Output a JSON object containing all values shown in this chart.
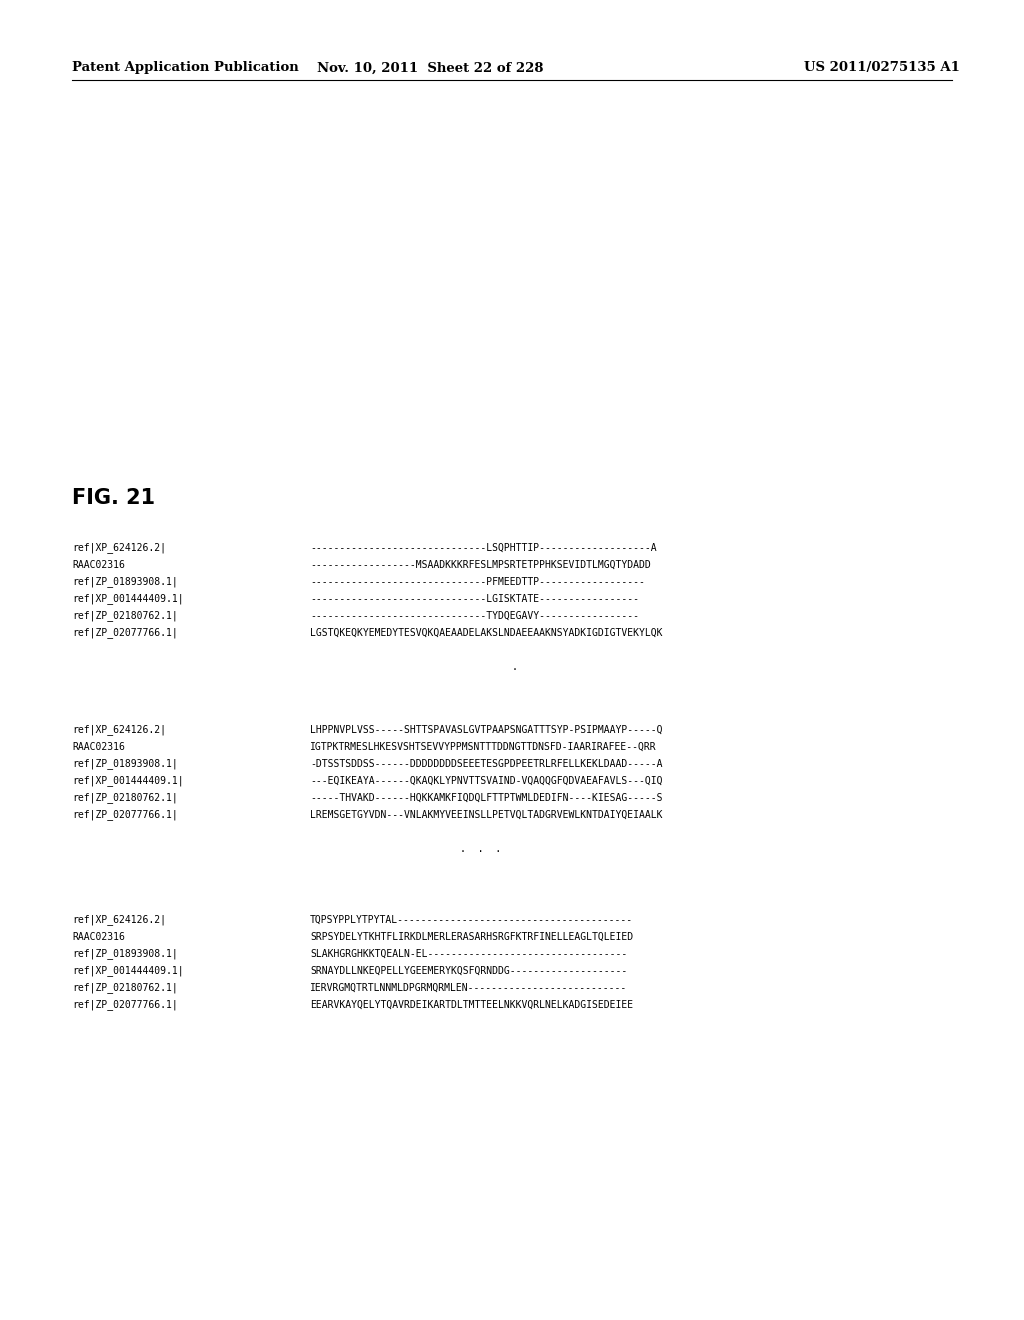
{
  "header_left": "Patent Application Publication",
  "header_middle": "Nov. 10, 2011  Sheet 22 of 228",
  "header_right": "US 2011/0275135 A1",
  "fig_label": "FIG. 21",
  "background_color": "#ffffff",
  "text_color": "#000000",
  "header_font_size": 9.5,
  "fig_label_font_size": 15,
  "mono_font_size": 7.0,
  "block1": [
    [
      "ref|XP_624126.2|",
      "------------------------------LSQPHTTIP-------------------A"
    ],
    [
      "RAAC02316",
      "------------------MSAADKKKRFESLMPSRTETPPHKSEVIDTLMGQTYDADD"
    ],
    [
      "ref|ZP_01893908.1|",
      "------------------------------PFMEEDTTP------------------"
    ],
    [
      "ref|XP_001444409.1|",
      "------------------------------LGISKTATE-----------------"
    ],
    [
      "ref|ZP_02180762.1|",
      "------------------------------TYDQEGAVY-----------------"
    ],
    [
      "ref|ZP_02077766.1|",
      "LGSTQKEQKYEMEDYTESVQKQAEAADELAKSLNDAEEAAKNSYADKIGDIGTVEKYLQK"
    ]
  ],
  "block1_dot": ".",
  "block2": [
    [
      "ref|XP_624126.2|",
      "LHPPNVPLVSS-----SHTTSPAVASLGVTPAAPSNGATTTSYP-PSIPMAAYP-----Q"
    ],
    [
      "RAAC02316",
      "IGTPKTRMESLHKESVSHTSEVVYPPMSNTTTDDNGTTDNSFD-IAARIRAFEE--QRR"
    ],
    [
      "ref|ZP_01893908.1|",
      "-DTSSTSDDSS------DDDDDDDDSEEETESGPDPEETRLRFELLKEKLDAAD-----A"
    ],
    [
      "ref|XP_001444409.1|",
      "---EQIKEAYA------QKAQKLYPNVTTSVAIND-VQAQQGFQDVAEAFAVLS---QIQ"
    ],
    [
      "ref|ZP_02180762.1|",
      "-----THVAKD------HQKKAMKFIQDQLFTTPTWMLDEDIFN----KIESAG-----S"
    ],
    [
      "ref|ZP_02077766.1|",
      "LREMSGETGYVDN---VNLAKMYVEEINSLLPETVQLTADGRVEWLKNTDAIYQEIAALK"
    ]
  ],
  "block2_dots": ".  .  .",
  "block3": [
    [
      "ref|XP_624126.2|",
      "TQPSYPPLYTPYTAL----------------------------------------"
    ],
    [
      "RAAC02316",
      "SRPSYDELYTKHTFLIRKDLMERLERASARHSRGFKTRFINELLEAGLTQLEIED"
    ],
    [
      "ref|ZP_01893908.1|",
      "SLAKHGRGHKKTQEALN-EL----------------------------------"
    ],
    [
      "ref|XP_001444409.1|",
      "SRNAYDLLNKEQPELLYGEEMERYKQSFQRNDDG--------------------"
    ],
    [
      "ref|ZP_02180762.1|",
      "IERVRGMQTRTLNNMLDPGRMQRMLEN---------------------------"
    ],
    [
      "ref|ZP_02077766.1|",
      "EEARVKAYQELYTQAVRDEIKARTDLTMTTEELNKKVQRLNELKADGISEDEIEE"
    ]
  ]
}
